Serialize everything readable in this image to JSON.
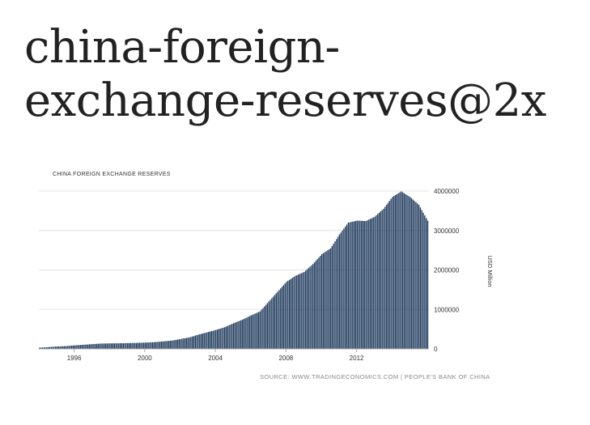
{
  "page": {
    "title_line1": "china-foreign-",
    "title_line2": "exchange-reserves@2x"
  },
  "chart_data": {
    "type": "bar",
    "title": "CHINA FOREIGN EXCHANGE RESERVES",
    "ylabel": "USD Million",
    "source": "SOURCE: WWW.TRADINGECONOMICS.COM | PEOPLE'S BANK OF CHINA",
    "x_tick_labels": [
      "1996",
      "2000",
      "2004",
      "2008",
      "2012"
    ],
    "y_tick_labels": [
      "4000000",
      "3000000",
      "2000000",
      "1000000",
      "0"
    ],
    "xlim": [
      1994,
      2016.1
    ],
    "ylim": [
      0,
      4000000
    ],
    "grid": true,
    "bar_color": "#1f3a5c",
    "series": [
      {
        "x": [
          1994.0,
          1994.5,
          1995.0,
          1995.5,
          1996.0,
          1996.5,
          1997.0,
          1997.5,
          1998.0,
          1998.5,
          1999.0,
          1999.5,
          2000.0,
          2000.5,
          2001.0,
          2001.5,
          2002.0,
          2002.5,
          2003.0,
          2003.5,
          2004.0,
          2004.5,
          2005.0,
          2005.5,
          2006.0,
          2006.5,
          2007.0,
          2007.5,
          2008.0,
          2008.5,
          2009.0,
          2009.5,
          2010.0,
          2010.5,
          2011.0,
          2011.5,
          2012.0,
          2012.5,
          2013.0,
          2013.5,
          2014.0,
          2014.5,
          2015.0,
          2015.5,
          2016.0
        ],
        "values": [
          30000,
          45000,
          60000,
          70000,
          90000,
          105000,
          120000,
          135000,
          140000,
          142000,
          147000,
          152000,
          160000,
          170000,
          190000,
          210000,
          250000,
          290000,
          360000,
          420000,
          480000,
          550000,
          650000,
          740000,
          850000,
          950000,
          1200000,
          1450000,
          1700000,
          1850000,
          1950000,
          2150000,
          2400000,
          2550000,
          2900000,
          3200000,
          3250000,
          3240000,
          3350000,
          3550000,
          3850000,
          3990000,
          3850000,
          3650000,
          3250000
        ]
      }
    ]
  }
}
